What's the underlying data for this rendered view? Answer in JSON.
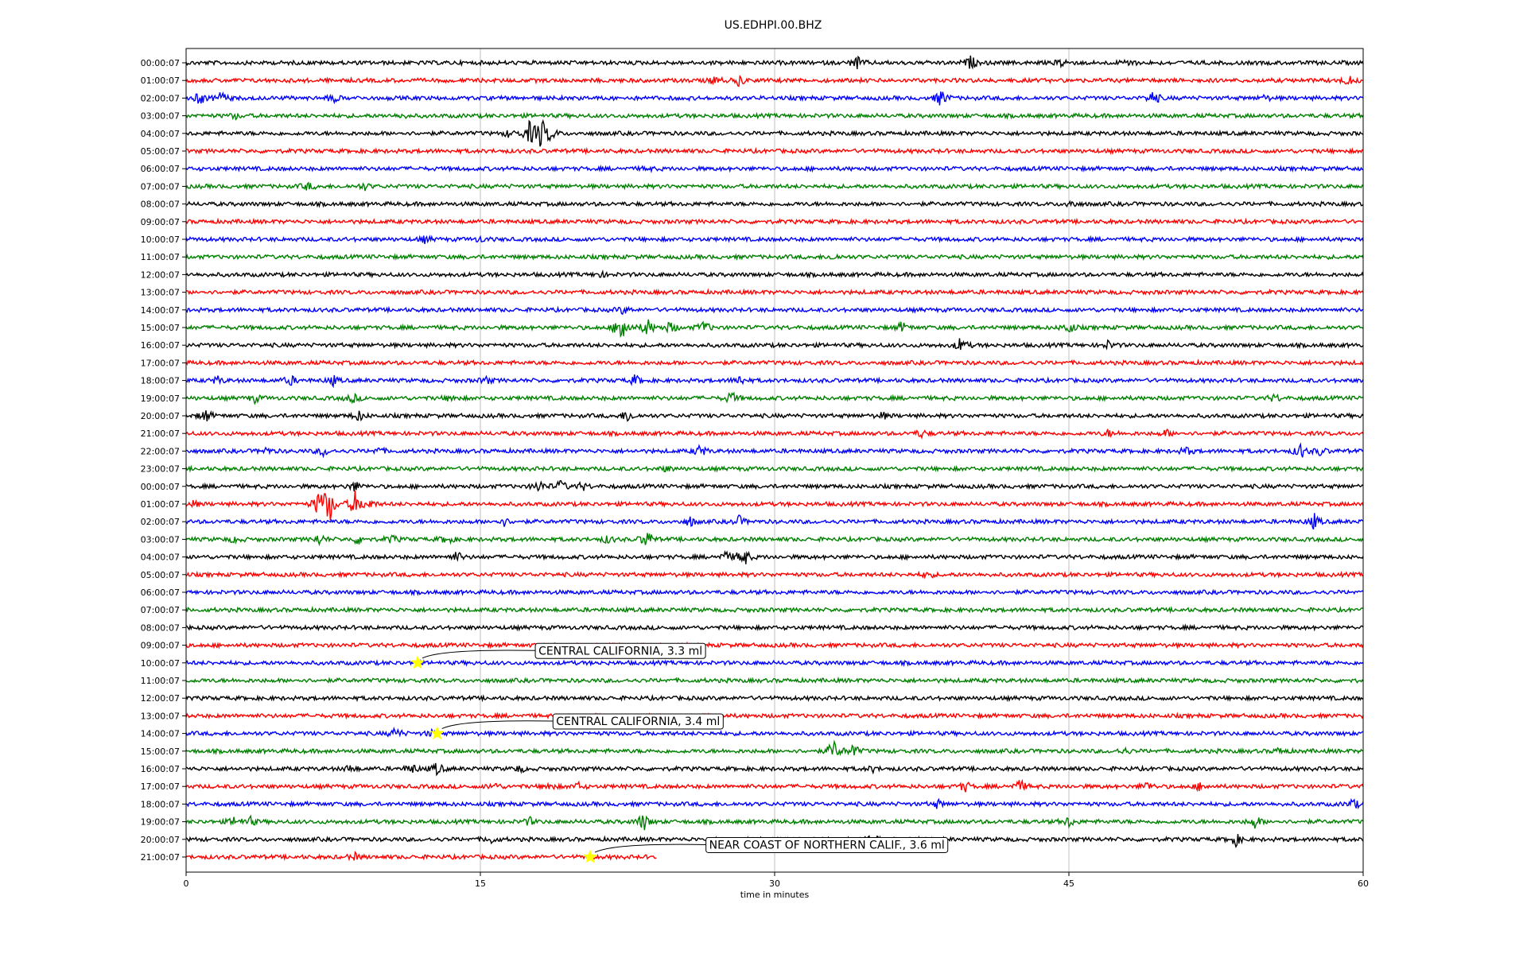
{
  "chart_data": {
    "type": "line",
    "title": "US.EDHPI.00.BHZ",
    "xlabel": "time in minutes",
    "ylabel": "",
    "xlim": [
      0,
      60
    ],
    "x_ticks": [
      "0",
      "15",
      "30",
      "45",
      "60"
    ],
    "grid": "vertical",
    "trace_colors": [
      "#000000",
      "#ff0000",
      "#0000ff",
      "#008000"
    ],
    "rows": [
      {
        "label": "00:00:07",
        "events": [
          [
            34.2,
            1.0
          ],
          [
            40.0,
            1.0
          ],
          [
            44.7,
            0.8
          ],
          [
            48.0,
            0.6
          ]
        ]
      },
      {
        "label": "01:00:07",
        "events": [
          [
            27.0,
            0.7
          ],
          [
            28.2,
            0.8
          ],
          [
            59.2,
            0.8
          ]
        ]
      },
      {
        "label": "02:00:07",
        "events": [
          [
            0.7,
            1.0
          ],
          [
            1.8,
            1.0
          ],
          [
            7.5,
            0.6
          ],
          [
            38.5,
            1.4
          ],
          [
            49.3,
            1.2
          ],
          [
            55.0,
            0.4
          ]
        ]
      },
      {
        "label": "03:00:07",
        "events": [
          [
            2.5,
            0.4
          ],
          [
            11.0,
            0.3
          ]
        ]
      },
      {
        "label": "04:00:07",
        "events": [
          [
            16.5,
            0.6
          ],
          [
            17.5,
            1.8
          ],
          [
            18.1,
            2.5
          ],
          [
            18.6,
            1.0
          ]
        ]
      },
      {
        "label": "05:00:07",
        "events": []
      },
      {
        "label": "06:00:07",
        "events": [
          [
            23.5,
            0.3
          ]
        ]
      },
      {
        "label": "07:00:07",
        "events": [
          [
            6.2,
            0.6
          ],
          [
            9.1,
            0.5
          ]
        ]
      },
      {
        "label": "08:00:07",
        "events": [
          [
            45.1,
            0.6
          ]
        ]
      },
      {
        "label": "09:00:07",
        "events": []
      },
      {
        "label": "10:00:07",
        "events": [
          [
            12.2,
            0.5
          ],
          [
            15.0,
            0.4
          ]
        ]
      },
      {
        "label": "11:00:07",
        "events": [
          [
            33.0,
            0.4
          ]
        ]
      },
      {
        "label": "12:00:07",
        "events": [
          [
            21.1,
            0.4
          ]
        ]
      },
      {
        "label": "13:00:07",
        "events": []
      },
      {
        "label": "14:00:07",
        "events": [
          [
            22.3,
            0.6
          ]
        ]
      },
      {
        "label": "15:00:07",
        "events": [
          [
            22.2,
            3.0
          ],
          [
            23.5,
            1.5
          ],
          [
            24.7,
            1.0
          ],
          [
            26.4,
            1.0
          ],
          [
            36.5,
            0.8
          ],
          [
            45.0,
            1.0
          ]
        ]
      },
      {
        "label": "16:00:07",
        "events": [
          [
            39.5,
            1.2
          ],
          [
            47.0,
            0.6
          ]
        ]
      },
      {
        "label": "17:00:07",
        "events": []
      },
      {
        "label": "18:00:07",
        "events": [
          [
            1.6,
            0.6
          ],
          [
            5.3,
            0.8
          ],
          [
            7.5,
            0.7
          ],
          [
            15.3,
            0.5
          ],
          [
            22.9,
            0.8
          ],
          [
            28.2,
            0.8
          ]
        ]
      },
      {
        "label": "19:00:07",
        "events": [
          [
            3.5,
            0.6
          ],
          [
            8.5,
            0.7
          ],
          [
            13.5,
            0.5
          ],
          [
            27.8,
            1.0
          ],
          [
            55.5,
            0.6
          ]
        ]
      },
      {
        "label": "20:00:07",
        "events": [
          [
            1.0,
            1.0
          ],
          [
            8.8,
            0.8
          ],
          [
            22.5,
            1.0
          ],
          [
            35.5,
            0.5
          ]
        ]
      },
      {
        "label": "21:00:07",
        "events": [
          [
            37.5,
            0.6
          ],
          [
            47.0,
            0.5
          ],
          [
            50.0,
            0.5
          ]
        ]
      },
      {
        "label": "22:00:07",
        "events": [
          [
            4.1,
            0.5
          ],
          [
            7.0,
            0.7
          ],
          [
            9.8,
            0.5
          ],
          [
            26.2,
            1.0
          ],
          [
            51.0,
            0.6
          ],
          [
            56.8,
            1.2
          ],
          [
            57.8,
            0.6
          ]
        ]
      },
      {
        "label": "23:00:07",
        "events": [
          [
            24.5,
            0.4
          ]
        ]
      },
      {
        "label": "00:00:07",
        "events": [
          [
            8.6,
            0.8
          ],
          [
            18.0,
            1.0
          ],
          [
            19.1,
            0.9
          ],
          [
            20.2,
            0.6
          ]
        ]
      },
      {
        "label": "01:00:07",
        "events": [
          [
            6.8,
            2.5
          ],
          [
            7.3,
            3.0
          ],
          [
            8.6,
            2.0
          ],
          [
            9.3,
            0.8
          ],
          [
            0.3,
            0.5
          ]
        ]
      },
      {
        "label": "02:00:07",
        "events": [
          [
            16.2,
            0.6
          ],
          [
            25.7,
            0.7
          ],
          [
            28.2,
            0.8
          ],
          [
            57.5,
            1.2
          ]
        ]
      },
      {
        "label": "03:00:07",
        "events": [
          [
            2.5,
            0.5
          ],
          [
            6.8,
            0.8
          ],
          [
            8.8,
            0.8
          ],
          [
            10.5,
            0.6
          ],
          [
            13.3,
            0.8
          ],
          [
            21.5,
            0.6
          ],
          [
            23.5,
            1.5
          ]
        ]
      },
      {
        "label": "04:00:07",
        "events": [
          [
            13.8,
            0.8
          ],
          [
            27.5,
            0.8
          ],
          [
            28.4,
            1.8
          ]
        ]
      },
      {
        "label": "05:00:07",
        "events": [
          [
            37.8,
            0.5
          ]
        ]
      },
      {
        "label": "06:00:07",
        "events": []
      },
      {
        "label": "07:00:07",
        "events": []
      },
      {
        "label": "08:00:07",
        "events": []
      },
      {
        "label": "09:00:07",
        "events": []
      },
      {
        "label": "10:00:07",
        "events": []
      },
      {
        "label": "11:00:07",
        "events": []
      },
      {
        "label": "12:00:07",
        "events": []
      },
      {
        "label": "13:00:07",
        "events": []
      },
      {
        "label": "14:00:07",
        "events": [
          [
            10.7,
            1.0
          ],
          [
            12.5,
            0.5
          ]
        ]
      },
      {
        "label": "15:00:07",
        "events": [
          [
            33.0,
            1.8
          ],
          [
            34.0,
            1.0
          ],
          [
            47.8,
            0.5
          ],
          [
            55.8,
            0.5
          ]
        ]
      },
      {
        "label": "16:00:07",
        "events": [
          [
            8.4,
            0.6
          ],
          [
            11.5,
            0.8
          ],
          [
            12.8,
            1.0
          ],
          [
            17.0,
            0.5
          ],
          [
            35.0,
            0.4
          ]
        ]
      },
      {
        "label": "17:00:07",
        "events": [
          [
            15.7,
            0.6
          ],
          [
            18.5,
            0.6
          ],
          [
            20.0,
            0.5
          ],
          [
            39.7,
            0.8
          ],
          [
            42.5,
            1.0
          ],
          [
            49.0,
            0.7
          ],
          [
            51.7,
            0.6
          ]
        ]
      },
      {
        "label": "18:00:07",
        "events": [
          [
            38.3,
            0.6
          ],
          [
            59.5,
            0.8
          ]
        ]
      },
      {
        "label": "19:00:07",
        "events": [
          [
            2.5,
            0.8
          ],
          [
            3.3,
            0.6
          ],
          [
            17.5,
            0.6
          ],
          [
            23.3,
            1.5
          ],
          [
            45.0,
            0.8
          ],
          [
            54.5,
            1.0
          ]
        ]
      },
      {
        "label": "20:00:07",
        "events": [
          [
            15.5,
            0.6
          ],
          [
            35.0,
            0.6
          ],
          [
            53.5,
            1.0
          ]
        ]
      },
      {
        "label": "21:00:07",
        "events": [
          [
            8.6,
            0.5
          ]
        ],
        "end_minute": 24
      }
    ],
    "annotations": [
      {
        "text": "CENTRAL CALIFORNIA, 3.3 ml",
        "row": 34,
        "minute": 11.8,
        "label_minute": 17.8,
        "label_row": 33.3
      },
      {
        "text": "CENTRAL CALIFORNIA, 3.4 ml",
        "row": 38,
        "minute": 12.8,
        "label_minute": 18.7,
        "label_row": 37.3
      },
      {
        "text": "NEAR COAST OF NORTHERN CALIF., 3.6 ml",
        "row": 45,
        "minute": 20.6,
        "label_minute": 26.5,
        "label_row": 44.3
      }
    ],
    "marker_color": "#ffff00"
  }
}
